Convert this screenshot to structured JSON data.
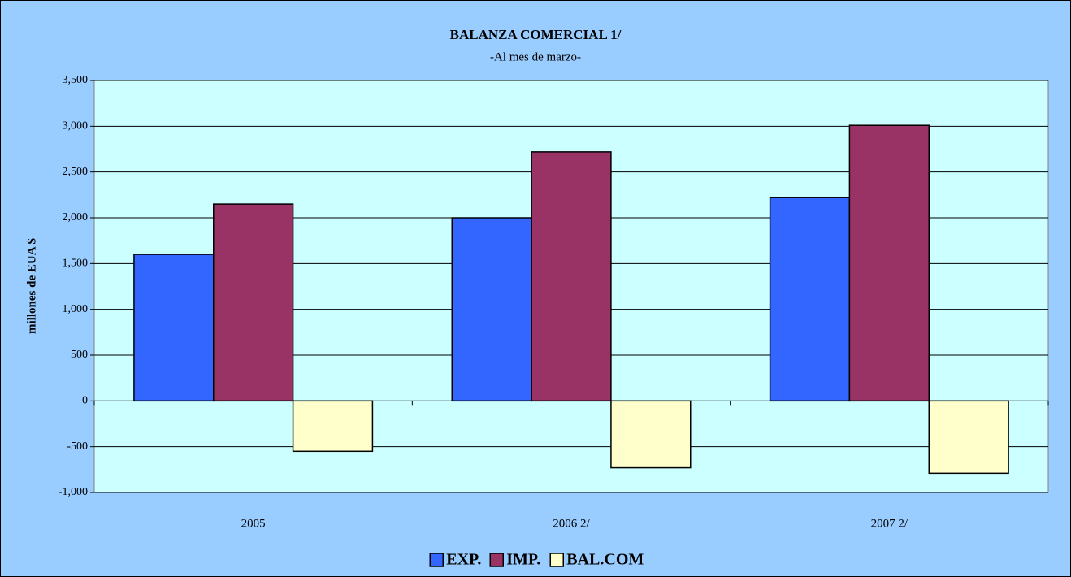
{
  "chart_data": {
    "type": "bar",
    "title": "BALANZA COMERCIAL 1/",
    "subtitle": "-Al mes de marzo-",
    "y_label": "millones de EUA $",
    "categories": [
      "2005",
      "2006 2/",
      "2007 2/"
    ],
    "series": [
      {
        "name": "EXP.",
        "color": "#3366ff",
        "values": [
          1600,
          2000,
          2220
        ]
      },
      {
        "name": "IMP.",
        "color": "#993366",
        "values": [
          2150,
          2720,
          3010
        ]
      },
      {
        "name": "BAL.COM",
        "color": "#ffffcc",
        "values": [
          -550,
          -730,
          -790
        ]
      }
    ],
    "ylim": [
      -1000,
      3500
    ],
    "yticks": [
      {
        "value": -1000,
        "label": "-1,000"
      },
      {
        "value": -500,
        "label": "-500"
      },
      0,
      500,
      {
        "value": 1000,
        "label": "1,000"
      },
      {
        "value": 1500,
        "label": "1,500"
      },
      {
        "value": 2000,
        "label": "2,000"
      },
      {
        "value": 2500,
        "label": "2,500"
      },
      {
        "value": 3000,
        "label": "3,000"
      },
      {
        "value": 3500,
        "label": "3,500"
      }
    ],
    "grid": true,
    "legend": "bottom"
  }
}
